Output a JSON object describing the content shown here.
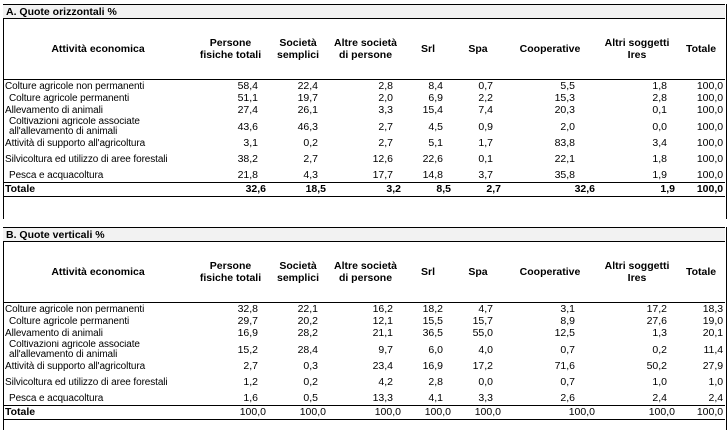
{
  "section_a": {
    "title": "A. Quote orizzontali  %",
    "headers": [
      "Attività economica",
      "Persone fisiche totali",
      "Società semplici",
      "Altre società di persone",
      "Srl",
      "Spa",
      "Cooperative",
      "Altri soggetti Ires",
      "Totale"
    ],
    "rows": [
      {
        "label": "Colture agricole non permanenti",
        "values": [
          "58,4",
          "22,4",
          "2,8",
          "8,4",
          "0,7",
          "5,5",
          "1,8",
          "100,0"
        ]
      },
      {
        "label": " Colture agricole permanenti",
        "values": [
          "51,1",
          "19,7",
          "2,0",
          "6,9",
          "2,2",
          "15,3",
          "2,8",
          "100,0"
        ]
      },
      {
        "label": "Allevamento di animali",
        "values": [
          "27,4",
          "26,1",
          "3,3",
          "15,4",
          "7,4",
          "20,3",
          "0,1",
          "100,0"
        ]
      },
      {
        "label": " Coltivazioni agricole associate all'allevamento di animali",
        "values": [
          "43,6",
          "46,3",
          "2,7",
          "4,5",
          "0,9",
          "2,0",
          "0,0",
          "100,0"
        ]
      },
      {
        "label": "Attività di supporto all'agricoltura",
        "values": [
          "3,1",
          "0,2",
          "2,7",
          "5,1",
          "1,7",
          "83,8",
          "3,4",
          "100,0"
        ]
      },
      {
        "label": "Silvicoltura ed utilizzo di aree forestali",
        "values": [
          "38,2",
          "2,7",
          "12,6",
          "22,6",
          "0,1",
          "22,1",
          "1,8",
          "100,0"
        ]
      },
      {
        "label": " Pesca e acquacoltura",
        "values": [
          "21,8",
          "4,3",
          "17,7",
          "14,8",
          "3,7",
          "35,8",
          "1,9",
          "100,0"
        ]
      }
    ],
    "total": {
      "label": "Totale",
      "values": [
        "32,6",
        "18,5",
        "3,2",
        "8,5",
        "2,7",
        "32,6",
        "1,9",
        "100,0"
      ]
    }
  },
  "section_b": {
    "title": "B. Quote verticali %",
    "headers": [
      "Attività economica",
      "Persone fisiche totali",
      "Società semplici",
      "Altre società di persone",
      "Srl",
      "Spa",
      "Cooperative",
      "Altri soggetti Ires",
      "Totale"
    ],
    "rows": [
      {
        "label": "Colture agricole non permanenti",
        "values": [
          "32,8",
          "22,1",
          "16,2",
          "18,2",
          "4,7",
          "3,1",
          "17,2",
          "18,3"
        ]
      },
      {
        "label": " Colture agricole permanenti",
        "values": [
          "29,7",
          "20,2",
          "12,1",
          "15,5",
          "15,7",
          "8,9",
          "27,6",
          "19,0"
        ]
      },
      {
        "label": "Allevamento di animali",
        "values": [
          "16,9",
          "28,2",
          "21,1",
          "36,5",
          "55,0",
          "12,5",
          "1,3",
          "20,1"
        ]
      },
      {
        "label": " Coltivazioni agricole associate all'allevamento di animali",
        "values": [
          "15,2",
          "28,4",
          "9,7",
          "6,0",
          "4,0",
          "0,7",
          "0,2",
          "11,4"
        ]
      },
      {
        "label": "Attività di supporto all'agricoltura",
        "values": [
          "2,7",
          "0,3",
          "23,4",
          "16,9",
          "17,2",
          "71,6",
          "50,2",
          "27,9"
        ]
      },
      {
        "label": "Silvicoltura ed utilizzo di aree forestali",
        "values": [
          "1,2",
          "0,2",
          "4,2",
          "2,8",
          "0,0",
          "0,7",
          "1,0",
          "1,0"
        ]
      },
      {
        "label": " Pesca e acquacoltura",
        "values": [
          "1,6",
          "0,5",
          "13,3",
          "4,1",
          "3,3",
          "2,6",
          "2,4",
          "2,4"
        ]
      }
    ],
    "total": {
      "label": "Totale",
      "values": [
        "100,0",
        "100,0",
        "100,0",
        "100,0",
        "100,0",
        "100,0",
        "100,0",
        "100,0"
      ]
    }
  }
}
